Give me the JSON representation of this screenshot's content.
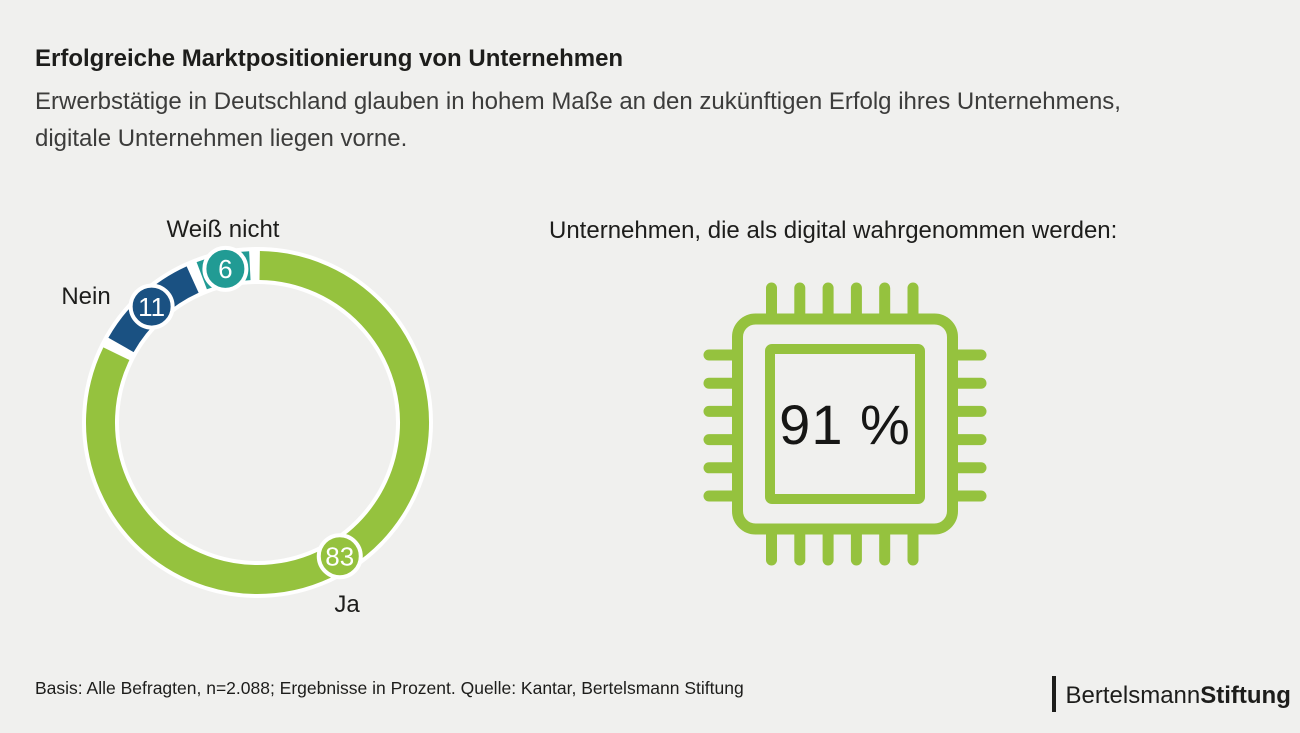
{
  "page": {
    "background": "#f0f0ee",
    "title": "Erfolgreiche Marktpositionierung von Unternehmen",
    "subtitle_line1": "Erwerbstätige in Deutschland glauben in hohem Maße an den zukünftigen Erfolg ihres Unternehmens,",
    "subtitle_line2": "digitale Unternehmen liegen vorne."
  },
  "chart_data": {
    "type": "pie",
    "donut": true,
    "labels": [
      "Ja",
      "Nein",
      "Weiß nicht"
    ],
    "values": [
      83,
      11,
      6
    ],
    "colors": [
      "#95c23e",
      "#1a5182",
      "#219b94"
    ],
    "unit": "Prozent",
    "start_angle_deg": -1,
    "separator_color": "#ffffff",
    "badge_text_color": "#ffffff",
    "legend_position": "around-ring"
  },
  "digital": {
    "heading": "Unternehmen, die als digital wahrgenommen werden:",
    "value": 91,
    "display": "91 %",
    "icon": "chip-icon",
    "color": "#95c23e"
  },
  "footer": {
    "note": "Basis: Alle Befragten, n=2.088; Ergebnisse in Prozent. Quelle: Kantar, Bertelsmann Stiftung",
    "logo_part1": "Bertelsmann",
    "logo_part2": "Stiftung"
  }
}
